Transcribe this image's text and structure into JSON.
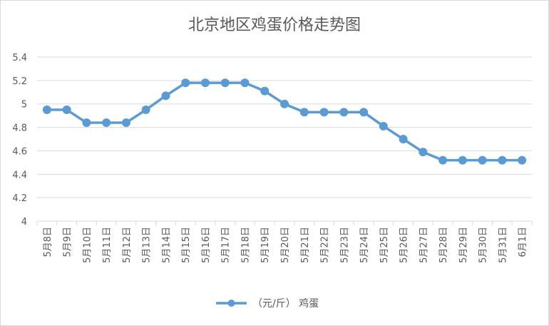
{
  "chart_data": {
    "type": "line",
    "title": "北京地区鸡蛋价格走势图",
    "categories": [
      "5月8日",
      "5月9日",
      "5月10日",
      "5月11日",
      "5月12日",
      "5月13日",
      "5月14日",
      "5月15日",
      "5月16日",
      "5月17日",
      "5月18日",
      "5月19日",
      "5月20日",
      "5月21日",
      "5月22日",
      "5月23日",
      "5月24日",
      "5月25日",
      "5月26日",
      "5月27日",
      "5月28日",
      "5月29日",
      "5月30日",
      "5月31日",
      "6月1日"
    ],
    "series": [
      {
        "name": "（元/斤） 鸡蛋",
        "values": [
          4.95,
          4.95,
          4.84,
          4.84,
          4.84,
          4.95,
          5.07,
          5.18,
          5.18,
          5.18,
          5.18,
          5.11,
          5.0,
          4.93,
          4.93,
          4.93,
          4.93,
          4.81,
          4.7,
          4.59,
          4.52,
          4.52,
          4.52,
          4.52,
          4.52
        ]
      }
    ],
    "y_ticks": [
      "4",
      "4.2",
      "4.4",
      "4.6",
      "4.8",
      "5",
      "5.2",
      "5.4"
    ],
    "ylim": [
      4,
      5.4
    ],
    "grid": true,
    "legend": "bottom",
    "colors": {
      "series": "#5b9bd5",
      "grid": "#d9d9d9",
      "text": "#595959"
    }
  }
}
